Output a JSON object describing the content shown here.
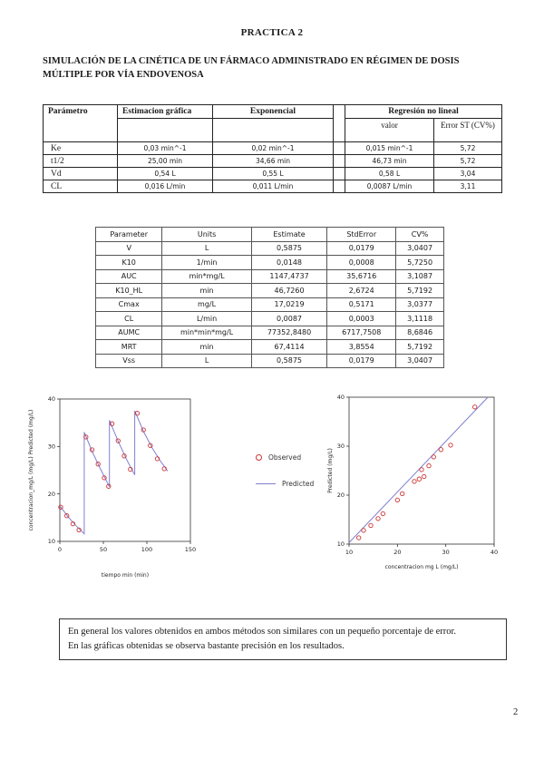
{
  "page": {
    "title": "PRACTICA 2",
    "heading": "SIMULACIÓN DE LA CINÉTICA DE UN FÁRMACO ADMINISTRADO EN RÉGIMEN DE DOSIS MÚLTIPLE POR VÍA ENDOVENOSA",
    "page_number": "2"
  },
  "table1": {
    "header": {
      "col_param": "Parámetro",
      "col_grafica": "Estimacion gráfica",
      "col_exponencial": "Exponencial",
      "col_regresion": "Regresión no lineal",
      "col_valor": "valor",
      "col_error": "Error ST (CV%)"
    },
    "rows": [
      {
        "param": "Ke",
        "grafica": "0,03 min^-1",
        "exponencial": "0,02 min^-1",
        "valor": "0,015  min^-1",
        "error": "5,72"
      },
      {
        "param": "t1/2",
        "grafica": "25,00 min",
        "exponencial": "34,66 min",
        "valor": "46,73 min",
        "error": "5,72"
      },
      {
        "param": "Vd",
        "grafica": "0,54 L",
        "exponencial": "0,55 L",
        "valor": "0,58 L",
        "error": "3,04"
      },
      {
        "param": "CL",
        "grafica": "0,016 L/min",
        "exponencial": "0,011 L/min",
        "valor": "0,0087 L/min",
        "error": "3,11"
      }
    ]
  },
  "table2": {
    "headers": [
      "Parameter",
      "Units",
      "Estimate",
      "StdError",
      "CV%"
    ],
    "rows": [
      [
        "V",
        "L",
        "0,5875",
        "0,0179",
        "3,0407"
      ],
      [
        "K10",
        "1/min",
        "0,0148",
        "0,0008",
        "5,7250"
      ],
      [
        "AUC",
        "min*mg/L",
        "1147,4737",
        "35,6716",
        "3,1087"
      ],
      [
        "K10_HL",
        "min",
        "46,7260",
        "2,6724",
        "5,7192"
      ],
      [
        "Cmax",
        "mg/L",
        "17,0219",
        "0,5171",
        "3,0377"
      ],
      [
        "CL",
        "L/min",
        "0,0087",
        "0,0003",
        "3,1118"
      ],
      [
        "AUMC",
        "min*min*mg/L",
        "77352,8480",
        "6717,7508",
        "8,6846"
      ],
      [
        "MRT",
        "min",
        "67,4114",
        "3,8554",
        "5,7192"
      ],
      [
        "Vss",
        "L",
        "0,5875",
        "0,0179",
        "3,0407"
      ]
    ]
  },
  "legend": {
    "observed": "Observed",
    "predicted": "Predicted"
  },
  "colors": {
    "observed": "#cc3333",
    "predicted": "#8080d0"
  },
  "conclusion": {
    "line1": "En general los valores obtenidos en ambos métodos son similares con un pequeño porcentaje de error.",
    "line2": "En las gráficas obtenidas se observa bastante precisión en los resultados."
  },
  "chart_data": [
    {
      "type": "line",
      "title": "",
      "xlabel": "tiempo  min  (min)",
      "ylabel": "concentracion_mg/L (mg/L)  Predicted (mg/L)",
      "xlim": [
        0,
        150
      ],
      "ylim": [
        10,
        40
      ],
      "xticks": [
        0,
        50,
        100,
        150
      ],
      "yticks": [
        10,
        20,
        30,
        40
      ],
      "grid": false,
      "legend_position": "right",
      "series": [
        {
          "name": "Predicted",
          "kind": "line",
          "color": "#8080d0",
          "points": [
            [
              0,
              17.5
            ],
            [
              9,
              15.3
            ],
            [
              18,
              13.4
            ],
            [
              28,
              11.6
            ],
            [
              28,
              33
            ],
            [
              37,
              29
            ],
            [
              46,
              25.5
            ],
            [
              57,
              21.5
            ],
            [
              57,
              35.5
            ],
            [
              66,
              31.5
            ],
            [
              76,
              27.5
            ],
            [
              86,
              24
            ],
            [
              86,
              37.5
            ],
            [
              96,
              33.2
            ],
            [
              106,
              29.7
            ],
            [
              116,
              26.8
            ],
            [
              124,
              24.8
            ]
          ]
        },
        {
          "name": "Observed",
          "kind": "scatter",
          "color": "#cc3333",
          "points": [
            [
              1,
              17.2
            ],
            [
              8,
              15.4
            ],
            [
              15,
              13.7
            ],
            [
              22,
              12.4
            ],
            [
              30,
              32
            ],
            [
              37,
              29.3
            ],
            [
              44,
              26.3
            ],
            [
              51,
              23.4
            ],
            [
              56,
              21.6
            ],
            [
              60,
              34.8
            ],
            [
              67,
              31.2
            ],
            [
              74,
              28
            ],
            [
              81,
              25.2
            ],
            [
              89,
              37
            ],
            [
              96,
              33.5
            ],
            [
              104,
              30.2
            ],
            [
              112,
              27.4
            ],
            [
              120,
              25.3
            ]
          ]
        }
      ]
    },
    {
      "type": "scatter",
      "title": "",
      "xlabel": "concentracion  mg L  (mg/L)",
      "ylabel": "Predicted (mg/L)",
      "xlim": [
        10,
        40
      ],
      "ylim": [
        10,
        40
      ],
      "xticks": [
        10,
        20,
        30,
        40
      ],
      "yticks": [
        10,
        20,
        30,
        40
      ],
      "grid": false,
      "series": [
        {
          "name": "Predicted",
          "kind": "line",
          "color": "#8080d0",
          "points": [
            [
              10,
              10.3
            ],
            [
              38.7,
              40
            ]
          ]
        },
        {
          "name": "Observed",
          "kind": "scatter",
          "color": "#cc3333",
          "points": [
            [
              12,
              11.3
            ],
            [
              13,
              12.8
            ],
            [
              14.5,
              13.8
            ],
            [
              16,
              15.2
            ],
            [
              17,
              16.2
            ],
            [
              20,
              19
            ],
            [
              21,
              20.3
            ],
            [
              23.5,
              22.8
            ],
            [
              24.5,
              23.3
            ],
            [
              25,
              25.2
            ],
            [
              25.5,
              23.8
            ],
            [
              26.5,
              26
            ],
            [
              27.5,
              27.8
            ],
            [
              29,
              29.3
            ],
            [
              31,
              30.2
            ],
            [
              36,
              38
            ]
          ]
        }
      ]
    }
  ]
}
